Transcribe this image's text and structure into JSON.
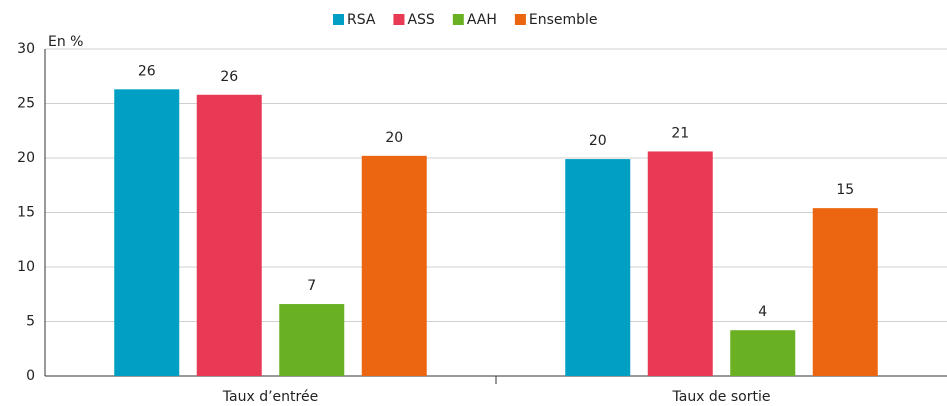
{
  "chart_data": {
    "type": "bar",
    "y_label": "En %",
    "categories": [
      "Taux d’entrée",
      "Taux de sortie"
    ],
    "series": [
      {
        "name": "RSA",
        "color": "#009fc3",
        "values": [
          26.3,
          19.9
        ],
        "value_labels": [
          "26",
          "20"
        ]
      },
      {
        "name": "ASS",
        "color": "#e83a55",
        "values": [
          25.8,
          20.6
        ],
        "value_labels": [
          "26",
          "21"
        ]
      },
      {
        "name": "AAH",
        "color": "#6ab023",
        "values": [
          6.6,
          4.2
        ],
        "value_labels": [
          "7",
          "4"
        ]
      },
      {
        "name": "Ensemble",
        "color": "#ec6611",
        "values": [
          20.2,
          15.4
        ],
        "value_labels": [
          "20",
          "15"
        ]
      }
    ],
    "ylim": [
      0,
      30
    ],
    "yticks": [
      0,
      5,
      10,
      15,
      20,
      25,
      30
    ],
    "grid": true,
    "legend": "top"
  }
}
